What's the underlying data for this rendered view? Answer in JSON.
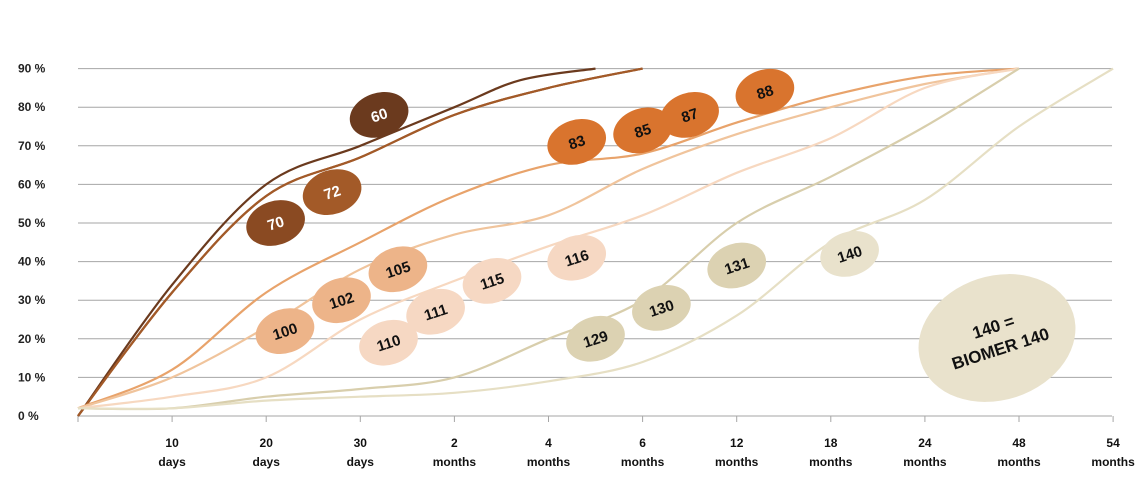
{
  "chart_data": {
    "type": "line",
    "title": "",
    "xlabel": "",
    "ylabel": "",
    "ylim": [
      0,
      90
    ],
    "y_ticks": [
      "0 %",
      "10 %",
      "20 %",
      "30 %",
      "40 %",
      "50 %",
      "60 %",
      "70 %",
      "80 %",
      "90 %"
    ],
    "x_ticks": [
      {
        "num": "10",
        "unit": "days"
      },
      {
        "num": "20",
        "unit": "days"
      },
      {
        "num": "30",
        "unit": "days"
      },
      {
        "num": "2",
        "unit": "months"
      },
      {
        "num": "4",
        "unit": "months"
      },
      {
        "num": "6",
        "unit": "months"
      },
      {
        "num": "12",
        "unit": "months"
      },
      {
        "num": "18",
        "unit": "months"
      },
      {
        "num": "24",
        "unit": "months"
      },
      {
        "num": "48",
        "unit": "months"
      },
      {
        "num": "54",
        "unit": "months"
      }
    ],
    "grid": "horizontal",
    "series": [
      {
        "label": "60",
        "color": "#6b3a1e",
        "points": [
          [
            0,
            0
          ],
          [
            1,
            34
          ],
          [
            2,
            60
          ],
          [
            3,
            70
          ],
          [
            4,
            80
          ],
          [
            4.7,
            87
          ],
          [
            5.5,
            90
          ]
        ]
      },
      {
        "label": "70",
        "color": "#8a4a22",
        "points": [
          [
            0,
            0
          ],
          [
            1,
            32
          ],
          [
            2,
            57
          ],
          [
            3,
            67
          ],
          [
            4,
            78
          ],
          [
            5,
            85
          ],
          [
            6,
            90
          ]
        ]
      },
      {
        "label": "72",
        "color": "#a35a28",
        "points": [
          [
            0,
            0
          ],
          [
            1,
            32
          ],
          [
            2,
            57
          ],
          [
            3,
            67
          ],
          [
            4,
            78
          ],
          [
            5,
            85
          ],
          [
            6,
            90
          ]
        ]
      },
      {
        "label": "83",
        "color": "#e8a36b",
        "points": [
          [
            0,
            2
          ],
          [
            1,
            12
          ],
          [
            2,
            32
          ],
          [
            3,
            45
          ],
          [
            4,
            57
          ],
          [
            5,
            65
          ],
          [
            6,
            68
          ],
          [
            7,
            76
          ],
          [
            8,
            83
          ],
          [
            9,
            88
          ],
          [
            10,
            90
          ]
        ]
      },
      {
        "label": "100",
        "color": "#f0c49c",
        "points": [
          [
            0,
            2
          ],
          [
            1,
            10
          ],
          [
            2,
            23
          ],
          [
            3,
            38
          ],
          [
            4,
            47
          ],
          [
            5,
            52
          ],
          [
            6,
            64
          ],
          [
            7,
            73
          ],
          [
            8,
            80
          ],
          [
            9,
            86
          ],
          [
            10,
            90
          ]
        ]
      },
      {
        "label": "110",
        "color": "#f7d8c0",
        "points": [
          [
            0,
            2
          ],
          [
            1,
            5
          ],
          [
            2,
            10
          ],
          [
            3,
            25
          ],
          [
            4,
            35
          ],
          [
            5,
            44
          ],
          [
            6,
            52
          ],
          [
            7,
            63
          ],
          [
            8,
            72
          ],
          [
            9,
            85
          ],
          [
            10,
            90
          ]
        ]
      },
      {
        "label": "129",
        "color": "#d8ceac",
        "points": [
          [
            0,
            2
          ],
          [
            1,
            2
          ],
          [
            2,
            5
          ],
          [
            3,
            7
          ],
          [
            4,
            10
          ],
          [
            5,
            20
          ],
          [
            6,
            30
          ],
          [
            7,
            50
          ],
          [
            8,
            62
          ],
          [
            9,
            75
          ],
          [
            10,
            90
          ]
        ]
      },
      {
        "label": "140",
        "color": "#e6dfc4",
        "points": [
          [
            0,
            2
          ],
          [
            1,
            2
          ],
          [
            2,
            4
          ],
          [
            3,
            5
          ],
          [
            4,
            6
          ],
          [
            5,
            9
          ],
          [
            6,
            14
          ],
          [
            7,
            26
          ],
          [
            8,
            45
          ],
          [
            9,
            56
          ],
          [
            10,
            75
          ],
          [
            11,
            90
          ]
        ]
      }
    ],
    "bubbles": [
      {
        "text": "60",
        "x": 3.2,
        "y": 78,
        "fill": "#6b3a1e",
        "color": "#ffffff"
      },
      {
        "text": "70",
        "x": 2.1,
        "y": 50,
        "fill": "#8a4a22",
        "color": "#ffffff"
      },
      {
        "text": "72",
        "x": 2.7,
        "y": 58,
        "fill": "#a35a28",
        "color": "#ffffff"
      },
      {
        "text": "83",
        "x": 5.3,
        "y": 71,
        "fill": "#d9742e",
        "color": "#111111"
      },
      {
        "text": "85",
        "x": 6.0,
        "y": 74,
        "fill": "#d9742e",
        "color": "#111111"
      },
      {
        "text": "87",
        "x": 6.5,
        "y": 78,
        "fill": "#d9742e",
        "color": "#111111"
      },
      {
        "text": "88",
        "x": 7.3,
        "y": 84,
        "fill": "#d9742e",
        "color": "#111111"
      },
      {
        "text": "100",
        "x": 2.2,
        "y": 22,
        "fill": "#edb489",
        "color": "#111111"
      },
      {
        "text": "102",
        "x": 2.8,
        "y": 30,
        "fill": "#edb489",
        "color": "#111111"
      },
      {
        "text": "105",
        "x": 3.4,
        "y": 38,
        "fill": "#edb489",
        "color": "#111111"
      },
      {
        "text": "110",
        "x": 3.3,
        "y": 19,
        "fill": "#f6d8c3",
        "color": "#111111"
      },
      {
        "text": "111",
        "x": 3.8,
        "y": 27,
        "fill": "#f6d8c3",
        "color": "#111111"
      },
      {
        "text": "115",
        "x": 4.4,
        "y": 35,
        "fill": "#f6d8c3",
        "color": "#111111"
      },
      {
        "text": "116",
        "x": 5.3,
        "y": 41,
        "fill": "#f6d8c3",
        "color": "#111111"
      },
      {
        "text": "129",
        "x": 5.5,
        "y": 20,
        "fill": "#dcd2b2",
        "color": "#111111"
      },
      {
        "text": "130",
        "x": 6.2,
        "y": 28,
        "fill": "#dcd2b2",
        "color": "#111111"
      },
      {
        "text": "131",
        "x": 7.0,
        "y": 39,
        "fill": "#dcd2b2",
        "color": "#111111"
      },
      {
        "text": "140",
        "x": 8.2,
        "y": 42,
        "fill": "#e9e2cc",
        "color": "#111111"
      }
    ],
    "note": {
      "line1": "140 =",
      "line2": "BIOMER 140",
      "fill": "#e9e2cc"
    }
  }
}
